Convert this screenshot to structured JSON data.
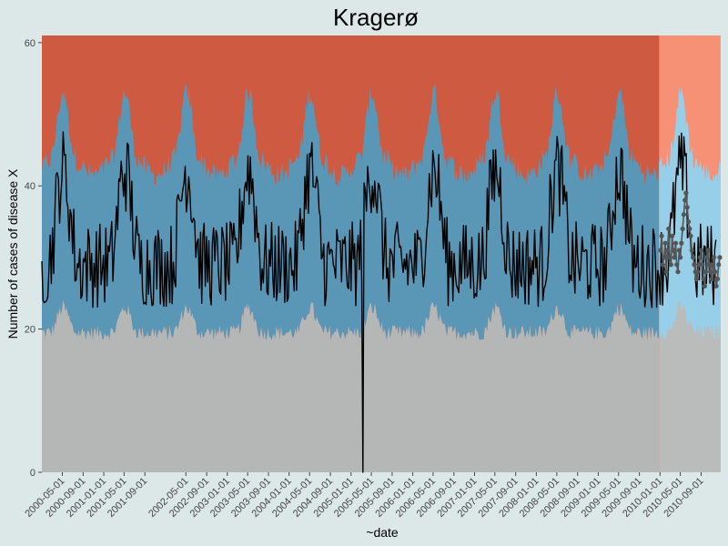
{
  "chart_data": {
    "type": "line",
    "title": "Kragerø",
    "xlabel": "~date",
    "ylabel": "Number of cases of disease X",
    "xlim": [
      "2000-01-01",
      "2010-12-31"
    ],
    "ylim": [
      0,
      61
    ],
    "yticks": [
      0,
      20,
      40,
      60
    ],
    "xticks": [
      "2000-05-01",
      "2000-09-01",
      "2001-01-01",
      "2001-05-01",
      "2001-09-01",
      "2002-05-01",
      "2002-09-01",
      "2003-01-01",
      "2003-05-01",
      "2003-09-01",
      "2004-01-01",
      "2004-05-01",
      "2004-09-01",
      "2005-01-01",
      "2005-05-01",
      "2005-09-01",
      "2006-01-01",
      "2006-05-01",
      "2006-09-01",
      "2007-01-01",
      "2007-05-01",
      "2007-09-01",
      "2008-01-01",
      "2008-05-01",
      "2008-09-01",
      "2009-01-01",
      "2009-05-01",
      "2009-09-01",
      "2010-01-01",
      "2010-05-01",
      "2010-09-01"
    ],
    "grid": false,
    "legend": "none",
    "colors": {
      "background": "#dce8e8",
      "low_band": "#b5b7b7",
      "normal_band_history": "#5a97b6",
      "normal_band_forecast": "#8fcbe6",
      "high_band_history": "#cf5a42",
      "high_band_forecast": "#f7886a",
      "forecast_shade": "#ffffff",
      "observed_line": "#000000",
      "forecast_points": "#555555",
      "title": "#000000",
      "tick_text": "#444444"
    },
    "history_end": "2009-12-31",
    "bands": {
      "description_values": "weekly thresholds in cases: low/normal boundary and normal/high boundary",
      "low_upper_base": 19.5,
      "normal_upper_base": 43.5,
      "seasonal_amplitude_low": 3.5,
      "seasonal_amplitude_high": 9.5,
      "season_peak": "early May",
      "ymax_plot": 61
    },
    "series": [
      {
        "kind": "observed",
        "x_start": "2000-01-01",
        "step_days": 7,
        "points": 570,
        "mean": 29,
        "seasonal_amplitude": 6,
        "noise": 6,
        "outlier": {
          "x": "2005-03-15",
          "y": 0
        }
      },
      {
        "kind": "forecast_points",
        "x_start": "2010-01-04",
        "x_end": "2010-12-20",
        "values": [
          31,
          33,
          29,
          30,
          32,
          28,
          31,
          34,
          30,
          29,
          33,
          31,
          30,
          32,
          29,
          28,
          31,
          30,
          32,
          34,
          36,
          38,
          39,
          37,
          35,
          34,
          33,
          31,
          30,
          29,
          28,
          27,
          28,
          29,
          30,
          31,
          29,
          27,
          26,
          28,
          30,
          31,
          29,
          28,
          27,
          29,
          30,
          28,
          26,
          27,
          29,
          30
        ]
      }
    ]
  }
}
